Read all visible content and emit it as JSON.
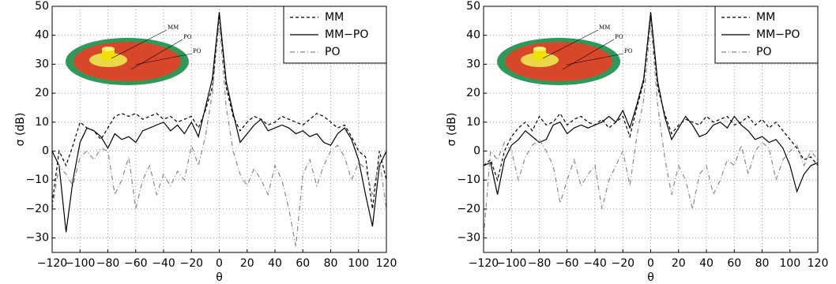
{
  "chart_data": [
    {
      "type": "line",
      "x_label": "θ",
      "y_label": "σ (dB)",
      "x": [
        -120,
        -115,
        -110,
        -105,
        -100,
        -95,
        -90,
        -85,
        -80,
        -75,
        -70,
        -65,
        -60,
        -55,
        -50,
        -45,
        -40,
        -35,
        -30,
        -25,
        -20,
        -15,
        -10,
        -5,
        0,
        5,
        10,
        15,
        20,
        25,
        30,
        35,
        40,
        45,
        50,
        55,
        60,
        65,
        70,
        75,
        80,
        85,
        90,
        95,
        100,
        105,
        110,
        115,
        120
      ],
      "xlim": [
        -120,
        120
      ],
      "xticks": [
        {
          "value": -120,
          "label": "−120"
        },
        {
          "value": -100,
          "label": "−100"
        },
        {
          "value": -80,
          "label": "−80"
        },
        {
          "value": -60,
          "label": "−60"
        },
        {
          "value": -40,
          "label": "−40"
        },
        {
          "value": -20,
          "label": "−20"
        },
        0,
        20,
        40,
        60,
        80,
        100,
        120
      ],
      "ylim": [
        -35,
        50
      ],
      "yticks": [
        {
          "value": -30,
          "label": "−30"
        },
        {
          "value": -20,
          "label": "−20"
        },
        {
          "value": -10,
          "label": "−10"
        },
        0,
        10,
        20,
        30,
        40,
        50
      ],
      "grid": true,
      "legend": "upper right",
      "annotations": [
        "MM",
        "PO",
        "PO"
      ],
      "series": [
        {
          "name": "MM",
          "color": "#000000",
          "dash": "dashed",
          "values": [
            -18,
            0,
            -5,
            2,
            10,
            8,
            7,
            4,
            8,
            12,
            13,
            12,
            13,
            11,
            12,
            13,
            11,
            12,
            10,
            11,
            12,
            8,
            14,
            22,
            47,
            22,
            12,
            7,
            10,
            12,
            11,
            9,
            10,
            12,
            11,
            10,
            9,
            11,
            13,
            12,
            10,
            8,
            9,
            5,
            0,
            -2,
            -20,
            0,
            -10
          ]
        },
        {
          "name": "MM−PO",
          "color": "#000000",
          "dash": "solid",
          "values": [
            0,
            -5,
            -28,
            -10,
            3,
            8,
            7,
            5,
            1,
            6,
            4,
            5,
            3,
            7,
            8,
            9,
            10,
            7,
            9,
            6,
            10,
            5,
            15,
            25,
            48,
            24,
            13,
            3,
            6,
            9,
            11,
            7,
            8,
            9,
            8,
            6,
            7,
            5,
            6,
            3,
            2,
            6,
            8,
            4,
            -3,
            -15,
            -26,
            -5,
            0
          ]
        },
        {
          "name": "PO",
          "color": "#888888",
          "dash": "dashdot",
          "values": [
            -20,
            -5,
            -8,
            -12,
            -2,
            0,
            -3,
            1,
            0,
            -15,
            -10,
            -2,
            -20,
            -10,
            -5,
            -15,
            -8,
            -12,
            -7,
            -10,
            2,
            -5,
            5,
            20,
            45,
            15,
            0,
            -8,
            -12,
            -6,
            -10,
            -15,
            -5,
            -10,
            -20,
            -33,
            -8,
            -3,
            -12,
            -5,
            0,
            2,
            -2,
            -10,
            -4,
            -6,
            -15,
            -3,
            -20
          ]
        }
      ]
    },
    {
      "type": "line",
      "x_label": "θ",
      "y_label": "σ (dB)",
      "x": [
        -120,
        -115,
        -110,
        -105,
        -100,
        -95,
        -90,
        -85,
        -80,
        -75,
        -70,
        -65,
        -60,
        -55,
        -50,
        -45,
        -40,
        -35,
        -30,
        -25,
        -20,
        -15,
        -10,
        -5,
        0,
        5,
        10,
        15,
        20,
        25,
        30,
        35,
        40,
        45,
        50,
        55,
        60,
        65,
        70,
        75,
        80,
        85,
        90,
        95,
        100,
        105,
        110,
        115,
        120
      ],
      "xlim": [
        -120,
        120
      ],
      "xticks": [
        {
          "value": -120,
          "label": "−120"
        },
        {
          "value": -100,
          "label": "−100"
        },
        {
          "value": -80,
          "label": "−80"
        },
        {
          "value": -60,
          "label": "−60"
        },
        {
          "value": -40,
          "label": "−40"
        },
        {
          "value": -20,
          "label": "−20"
        },
        0,
        20,
        40,
        60,
        80,
        100,
        120
      ],
      "ylim": [
        -35,
        50
      ],
      "yticks": [
        {
          "value": -30,
          "label": "−30"
        },
        {
          "value": -20,
          "label": "−20"
        },
        {
          "value": -10,
          "label": "−10"
        },
        0,
        10,
        20,
        30,
        40,
        50
      ],
      "grid": true,
      "legend": "upper right",
      "annotations": [
        "MM",
        "PO",
        "PO"
      ],
      "series": [
        {
          "name": "MM",
          "color": "#000000",
          "dash": "dashed",
          "values": [
            -5,
            -3,
            -10,
            0,
            5,
            8,
            10,
            7,
            12,
            9,
            10,
            13,
            9,
            11,
            12,
            10,
            9,
            11,
            8,
            10,
            12,
            5,
            15,
            24,
            47,
            22,
            13,
            6,
            9,
            11,
            10,
            9,
            12,
            10,
            11,
            12,
            9,
            10,
            12,
            9,
            11,
            8,
            10,
            7,
            4,
            1,
            -3,
            -2,
            -5
          ]
        },
        {
          "name": "MM−PO",
          "color": "#000000",
          "dash": "solid",
          "values": [
            -5,
            -4,
            -15,
            -3,
            2,
            4,
            7,
            5,
            3,
            4,
            9,
            10,
            6,
            8,
            9,
            8,
            9,
            10,
            12,
            10,
            14,
            8,
            16,
            25,
            48,
            24,
            12,
            4,
            8,
            12,
            9,
            5,
            6,
            9,
            10,
            8,
            12,
            9,
            7,
            4,
            5,
            3,
            4,
            1,
            -5,
            -14,
            -8,
            -5,
            -4
          ]
        },
        {
          "name": "PO",
          "color": "#888888",
          "dash": "dashdot",
          "values": [
            -30,
            0,
            -3,
            3,
            0,
            -10,
            -2,
            2,
            4,
            0,
            -5,
            -18,
            -10,
            -3,
            -12,
            -8,
            -5,
            -20,
            -10,
            -5,
            0,
            -12,
            5,
            18,
            45,
            16,
            -2,
            -15,
            -5,
            -10,
            -20,
            -8,
            -5,
            -15,
            -10,
            -3,
            -5,
            2,
            -8,
            0,
            3,
            1,
            -10,
            -3,
            0,
            2,
            -5,
            0,
            -3
          ]
        }
      ]
    }
  ]
}
